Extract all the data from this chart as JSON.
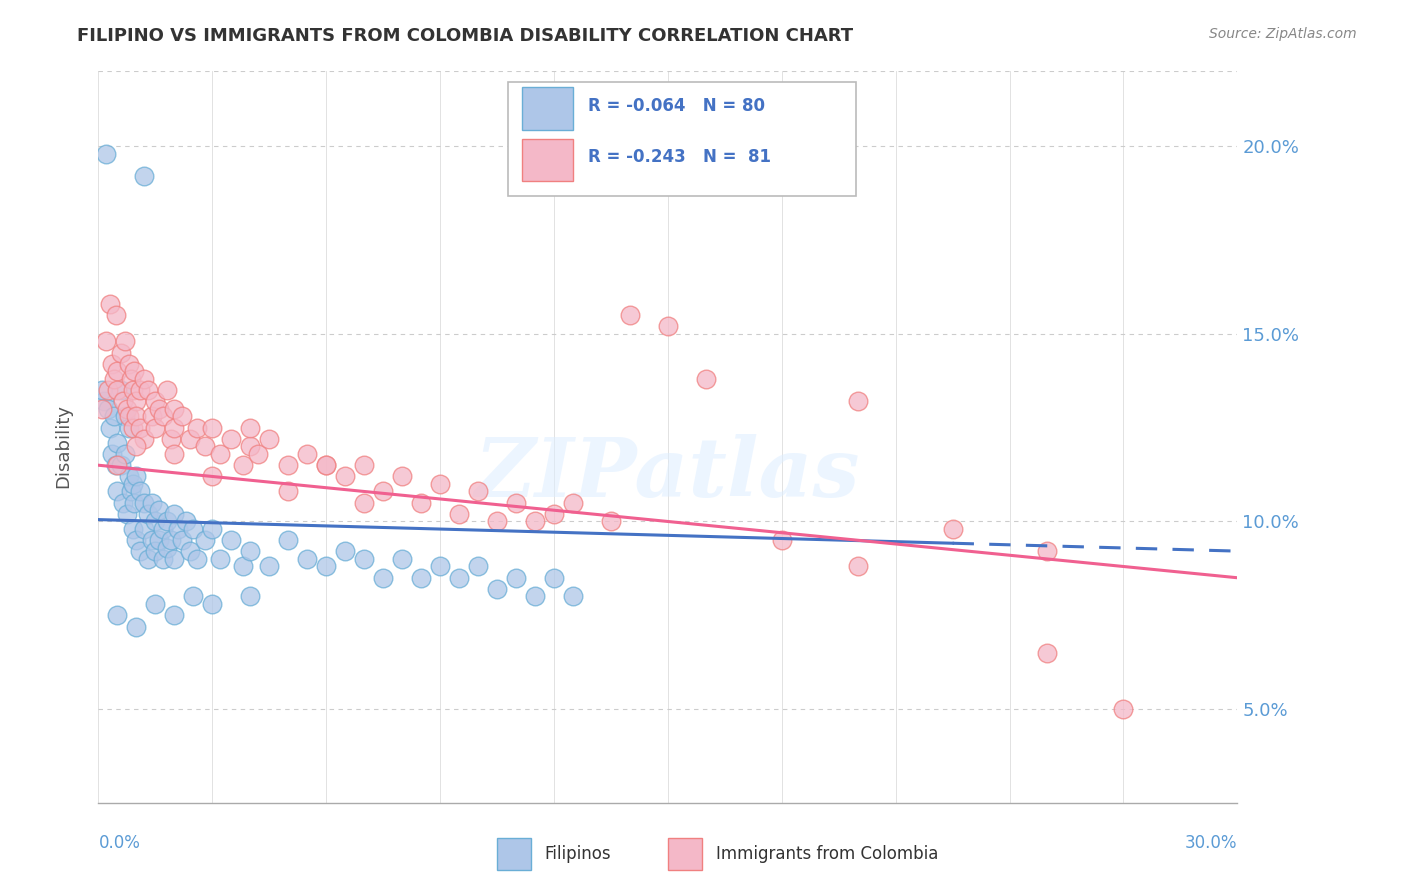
{
  "title": "FILIPINO VS IMMIGRANTS FROM COLOMBIA DISABILITY CORRELATION CHART",
  "source": "Source: ZipAtlas.com",
  "ylabel": "Disability",
  "xlim": [
    0.0,
    30.0
  ],
  "ylim": [
    2.5,
    22.0
  ],
  "yticks": [
    5.0,
    10.0,
    15.0,
    20.0
  ],
  "ytick_labels": [
    "5.0%",
    "10.0%",
    "15.0%",
    "20.0%"
  ],
  "filipino_color": "#aec6e8",
  "colombia_color": "#f4b8c8",
  "filipino_edge_color": "#6aaed6",
  "colombia_edge_color": "#f08080",
  "filipino_line_color": "#4472c4",
  "colombia_line_color": "#f06090",
  "legend_R1": "-0.064",
  "legend_N1": "80",
  "legend_R2": "-0.243",
  "legend_N2": "81",
  "legend_label1": "Filipinos",
  "legend_label2": "Immigrants from Colombia",
  "watermark": "ZIPatlas",
  "filipino_intercept": 10.05,
  "filipino_slope": -0.028,
  "colombia_intercept": 11.5,
  "colombia_slope": -0.1,
  "filipino_x_solid_end": 22.5,
  "filipino_points": [
    [
      0.15,
      13.2
    ],
    [
      0.25,
      13.0
    ],
    [
      0.3,
      12.5
    ],
    [
      0.35,
      11.8
    ],
    [
      0.4,
      12.8
    ],
    [
      0.45,
      11.5
    ],
    [
      0.5,
      10.8
    ],
    [
      0.5,
      12.1
    ],
    [
      0.6,
      11.5
    ],
    [
      0.6,
      13.5
    ],
    [
      0.65,
      10.5
    ],
    [
      0.7,
      11.8
    ],
    [
      0.7,
      12.8
    ],
    [
      0.75,
      10.2
    ],
    [
      0.8,
      11.2
    ],
    [
      0.8,
      12.5
    ],
    [
      0.85,
      10.8
    ],
    [
      0.9,
      11.0
    ],
    [
      0.9,
      9.8
    ],
    [
      0.95,
      10.5
    ],
    [
      1.0,
      11.2
    ],
    [
      1.0,
      9.5
    ],
    [
      1.1,
      10.8
    ],
    [
      1.1,
      9.2
    ],
    [
      1.2,
      10.5
    ],
    [
      1.2,
      9.8
    ],
    [
      1.3,
      10.2
    ],
    [
      1.3,
      9.0
    ],
    [
      1.4,
      10.5
    ],
    [
      1.4,
      9.5
    ],
    [
      1.5,
      10.0
    ],
    [
      1.5,
      9.2
    ],
    [
      1.6,
      10.3
    ],
    [
      1.6,
      9.5
    ],
    [
      1.7,
      9.8
    ],
    [
      1.7,
      9.0
    ],
    [
      1.8,
      10.0
    ],
    [
      1.8,
      9.3
    ],
    [
      1.9,
      9.5
    ],
    [
      2.0,
      10.2
    ],
    [
      2.0,
      9.0
    ],
    [
      2.1,
      9.8
    ],
    [
      2.2,
      9.5
    ],
    [
      2.3,
      10.0
    ],
    [
      2.4,
      9.2
    ],
    [
      2.5,
      9.8
    ],
    [
      2.6,
      9.0
    ],
    [
      2.8,
      9.5
    ],
    [
      3.0,
      9.8
    ],
    [
      3.2,
      9.0
    ],
    [
      3.5,
      9.5
    ],
    [
      3.8,
      8.8
    ],
    [
      4.0,
      9.2
    ],
    [
      4.5,
      8.8
    ],
    [
      5.0,
      9.5
    ],
    [
      5.5,
      9.0
    ],
    [
      6.0,
      8.8
    ],
    [
      6.5,
      9.2
    ],
    [
      7.0,
      9.0
    ],
    [
      7.5,
      8.5
    ],
    [
      8.0,
      9.0
    ],
    [
      8.5,
      8.5
    ],
    [
      9.0,
      8.8
    ],
    [
      9.5,
      8.5
    ],
    [
      10.0,
      8.8
    ],
    [
      10.5,
      8.2
    ],
    [
      11.0,
      8.5
    ],
    [
      11.5,
      8.0
    ],
    [
      12.0,
      8.5
    ],
    [
      12.5,
      8.0
    ],
    [
      0.2,
      19.8
    ],
    [
      1.2,
      19.2
    ],
    [
      0.1,
      13.5
    ],
    [
      0.5,
      7.5
    ],
    [
      1.0,
      7.2
    ],
    [
      1.5,
      7.8
    ],
    [
      2.0,
      7.5
    ],
    [
      2.5,
      8.0
    ],
    [
      3.0,
      7.8
    ],
    [
      4.0,
      8.0
    ]
  ],
  "colombia_points": [
    [
      0.1,
      13.0
    ],
    [
      0.2,
      14.8
    ],
    [
      0.25,
      13.5
    ],
    [
      0.3,
      15.8
    ],
    [
      0.35,
      14.2
    ],
    [
      0.4,
      13.8
    ],
    [
      0.45,
      15.5
    ],
    [
      0.5,
      14.0
    ],
    [
      0.5,
      13.5
    ],
    [
      0.6,
      14.5
    ],
    [
      0.65,
      13.2
    ],
    [
      0.7,
      14.8
    ],
    [
      0.75,
      13.0
    ],
    [
      0.8,
      14.2
    ],
    [
      0.8,
      12.8
    ],
    [
      0.85,
      13.8
    ],
    [
      0.9,
      13.5
    ],
    [
      0.9,
      12.5
    ],
    [
      0.95,
      14.0
    ],
    [
      1.0,
      13.2
    ],
    [
      1.0,
      12.8
    ],
    [
      1.1,
      13.5
    ],
    [
      1.1,
      12.5
    ],
    [
      1.2,
      13.8
    ],
    [
      1.2,
      12.2
    ],
    [
      1.3,
      13.5
    ],
    [
      1.4,
      12.8
    ],
    [
      1.5,
      13.2
    ],
    [
      1.5,
      12.5
    ],
    [
      1.6,
      13.0
    ],
    [
      1.7,
      12.8
    ],
    [
      1.8,
      13.5
    ],
    [
      1.9,
      12.2
    ],
    [
      2.0,
      13.0
    ],
    [
      2.0,
      12.5
    ],
    [
      2.2,
      12.8
    ],
    [
      2.4,
      12.2
    ],
    [
      2.6,
      12.5
    ],
    [
      2.8,
      12.0
    ],
    [
      3.0,
      12.5
    ],
    [
      3.2,
      11.8
    ],
    [
      3.5,
      12.2
    ],
    [
      3.8,
      11.5
    ],
    [
      4.0,
      12.0
    ],
    [
      4.2,
      11.8
    ],
    [
      4.5,
      12.2
    ],
    [
      5.0,
      11.5
    ],
    [
      5.5,
      11.8
    ],
    [
      6.0,
      11.5
    ],
    [
      6.5,
      11.2
    ],
    [
      7.0,
      11.5
    ],
    [
      7.5,
      10.8
    ],
    [
      8.0,
      11.2
    ],
    [
      8.5,
      10.5
    ],
    [
      9.0,
      11.0
    ],
    [
      9.5,
      10.2
    ],
    [
      10.0,
      10.8
    ],
    [
      10.5,
      10.0
    ],
    [
      11.0,
      10.5
    ],
    [
      11.5,
      10.0
    ],
    [
      12.0,
      10.2
    ],
    [
      12.5,
      10.5
    ],
    [
      13.5,
      10.0
    ],
    [
      14.0,
      15.5
    ],
    [
      15.0,
      15.2
    ],
    [
      16.0,
      13.8
    ],
    [
      18.0,
      9.5
    ],
    [
      20.0,
      13.2
    ],
    [
      20.0,
      8.8
    ],
    [
      22.5,
      9.8
    ],
    [
      25.0,
      9.2
    ],
    [
      25.0,
      6.5
    ],
    [
      27.0,
      5.0
    ],
    [
      0.5,
      11.5
    ],
    [
      1.0,
      12.0
    ],
    [
      2.0,
      11.8
    ],
    [
      3.0,
      11.2
    ],
    [
      4.0,
      12.5
    ],
    [
      5.0,
      10.8
    ],
    [
      6.0,
      11.5
    ],
    [
      7.0,
      10.5
    ]
  ]
}
